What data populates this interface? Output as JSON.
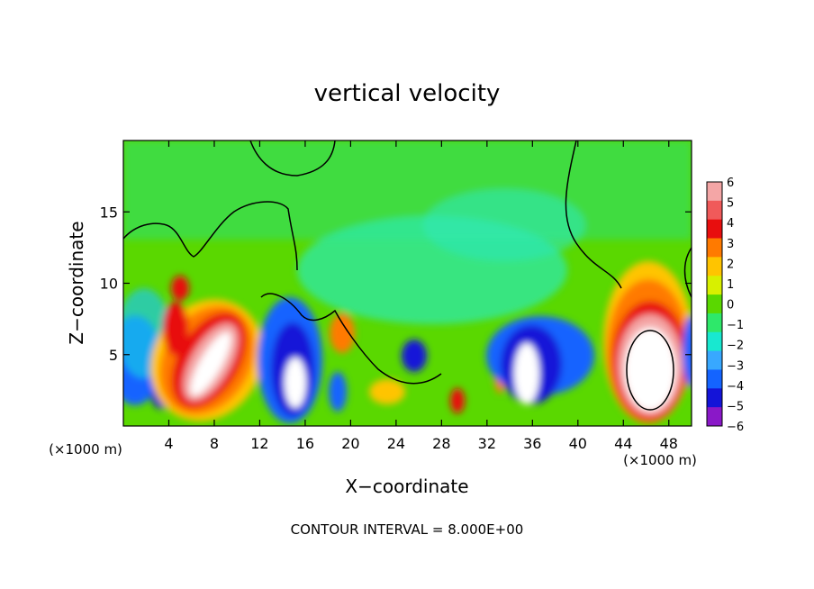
{
  "chart_data": {
    "type": "heatmap",
    "title": "vertical velocity",
    "xlabel": "X−coordinate",
    "ylabel": "Z−coordinate",
    "x_unit": "(×1000 m)",
    "x_unit_right": "(×1000 m)",
    "xlim": [
      0,
      50
    ],
    "ylim": [
      0,
      20
    ],
    "x_ticks": [
      4,
      8,
      12,
      16,
      20,
      24,
      28,
      32,
      36,
      40,
      44,
      48
    ],
    "y_ticks": [
      5,
      10,
      15
    ],
    "colorbar": {
      "levels": [
        6,
        5,
        4,
        3,
        2,
        1,
        0,
        -1,
        -2,
        -3,
        -4,
        -5,
        -6
      ],
      "labels": [
        "6",
        "5",
        "4",
        "3",
        "2",
        "1",
        "0",
        "−1",
        "−2",
        "−3",
        "−4",
        "−5",
        "−6"
      ],
      "colors": [
        "#f4a6a6",
        "#f05a5a",
        "#e80e0e",
        "#ff7a00",
        "#ffc400",
        "#d8f000",
        "#5ad800",
        "#2ee86a",
        "#18e8d0",
        "#38a8ff",
        "#1464ff",
        "#1414d8",
        "#8a18c8"
      ]
    },
    "features": [
      {
        "kind": "updraft",
        "x": 8.5,
        "z": 4.5,
        "max": 12
      },
      {
        "kind": "updraft",
        "x": 46,
        "z": 4.5,
        "max": 16
      },
      {
        "kind": "downdraft",
        "x": 15.5,
        "z": 3.5,
        "min": -8
      },
      {
        "kind": "downdraft",
        "x": 35,
        "z": 4,
        "min": -8
      }
    ],
    "contour_interval_text": "CONTOUR INTERVAL = 8.000E+00"
  }
}
